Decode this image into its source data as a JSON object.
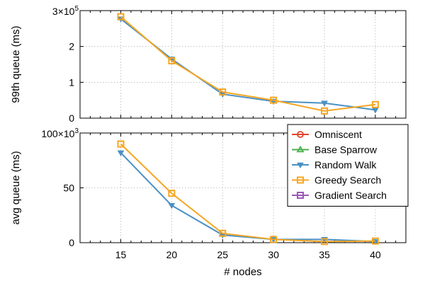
{
  "chart_data": [
    {
      "type": "line",
      "ylabel": "99th queue (ms)",
      "ylim": [
        0,
        300000
      ],
      "y_ticks": [
        "0",
        "1",
        "2"
      ],
      "y_top_label": {
        "base": "3×10",
        "exp": "5"
      },
      "x": [
        15,
        20,
        25,
        30,
        35,
        40
      ],
      "series": [
        {
          "name": "Random Walk",
          "color": "#4a90c4",
          "marker": "triangle-down",
          "values": [
            277000,
            165000,
            67000,
            47000,
            42000,
            23000
          ]
        },
        {
          "name": "Greedy Search",
          "color": "#f5a623",
          "marker": "square",
          "values": [
            283000,
            160000,
            73000,
            50000,
            20000,
            38000
          ]
        }
      ],
      "grid": true
    },
    {
      "type": "line",
      "ylabel": "avg queue (ms)",
      "xlabel": "# nodes",
      "ylim": [
        0,
        100000
      ],
      "y_ticks": [
        "0",
        "50"
      ],
      "y_top_label": {
        "base": "100×10",
        "exp": "3"
      },
      "x": [
        15,
        20,
        25,
        30,
        35,
        40
      ],
      "x_ticks": [
        "15",
        "20",
        "25",
        "30",
        "35",
        "40"
      ],
      "series": [
        {
          "name": "Random Walk",
          "color": "#4a90c4",
          "marker": "triangle-down",
          "values": [
            82000,
            34000,
            7000,
            3000,
            3000,
            1000
          ]
        },
        {
          "name": "Greedy Search",
          "color": "#f5a623",
          "marker": "square",
          "values": [
            90000,
            45000,
            8500,
            3000,
            1000,
            1500
          ]
        }
      ],
      "grid": true
    }
  ],
  "legend": {
    "placement": "right",
    "entries": [
      {
        "label": "Omniscent",
        "color": "#e0442c",
        "marker": "circle"
      },
      {
        "label": "Base Sparrow",
        "color": "#4caf50",
        "marker": "triangle-up"
      },
      {
        "label": "Random Walk",
        "color": "#4a90c4",
        "marker": "triangle-down"
      },
      {
        "label": "Greedy Search",
        "color": "#f5a623",
        "marker": "square"
      },
      {
        "label": "Gradient Search",
        "color": "#9b59b6",
        "marker": "square"
      }
    ]
  }
}
